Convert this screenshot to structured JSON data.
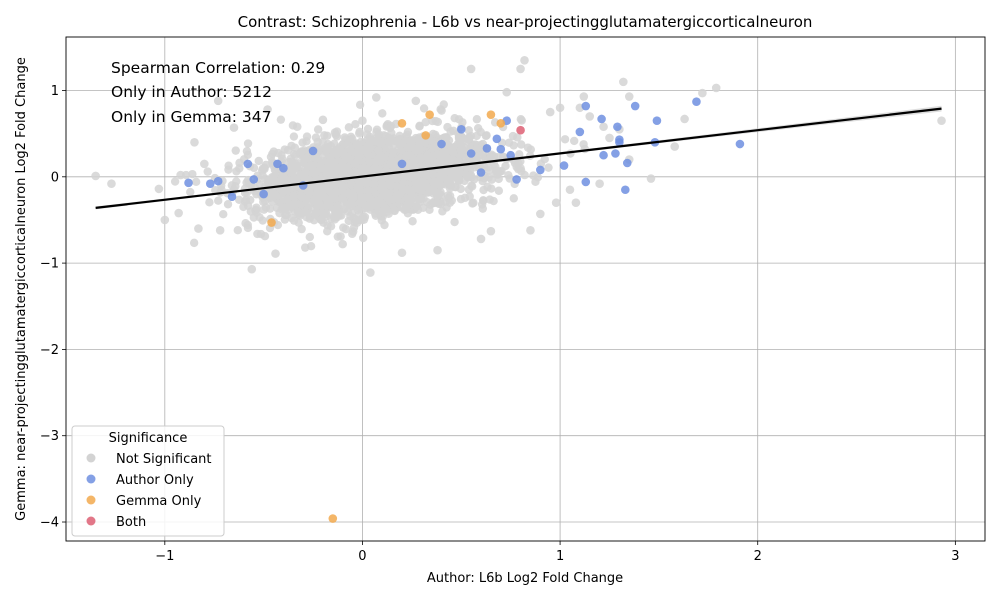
{
  "chart_data": {
    "type": "scatter",
    "title": "Contrast: Schizophrenia - L6b vs near-projectingglutamatergiccorticalneuron",
    "xlabel": "Author: L6b Log2 Fold Change",
    "ylabel": "Gemma: near-projectingglutamatergiccorticalneuron Log2 Fold Change",
    "xlim": [
      -1.5,
      3.15
    ],
    "ylim": [
      -4.22,
      1.62
    ],
    "xticks": [
      -1,
      0,
      1,
      2,
      3
    ],
    "yticks": [
      -4,
      -3,
      -2,
      -1,
      0,
      1
    ],
    "xtick_labels": [
      "−1",
      "0",
      "1",
      "2",
      "3"
    ],
    "ytick_labels": [
      "−4",
      "−3",
      "−2",
      "−1",
      "0",
      "1"
    ],
    "grid": true,
    "annotations": [
      "Spearman Correlation: 0.29",
      "Only in Author: 5212",
      "Only in Gemma: 347"
    ],
    "regression_line": {
      "x": [
        -1.35,
        2.93
      ],
      "y": [
        -0.36,
        0.79
      ]
    },
    "legend": {
      "title": "Significance",
      "placement": "lower-left",
      "entries": [
        "Not Significant",
        "Author Only",
        "Gemma Only",
        "Both"
      ]
    },
    "colors": {
      "Not Significant": "#d3d3d3",
      "Author Only": "#6f8fe0",
      "Gemma Only": "#f2a94e",
      "Both": "#dd5f73",
      "regression": "#000000",
      "ci_band": "#c8c8c8"
    },
    "cloud": {
      "series": "Not Significant",
      "count": 2600,
      "x_mean": 0.05,
      "x_sd": 0.3,
      "y_slope": 0.27,
      "y_sd": 0.22
    },
    "series": [
      {
        "name": "Not Significant",
        "points": [
          [
            -1.35,
            0.01
          ],
          [
            -1.27,
            -0.08
          ],
          [
            -1.03,
            -0.14
          ],
          [
            -1.0,
            -0.5
          ],
          [
            -0.93,
            -0.42
          ],
          [
            -0.92,
            0.02
          ],
          [
            -0.85,
            0.4
          ],
          [
            -0.83,
            -0.6
          ],
          [
            -0.8,
            0.15
          ],
          [
            -0.73,
            0.88
          ],
          [
            -0.72,
            -0.62
          ],
          [
            -0.65,
            0.57
          ],
          [
            -0.56,
            -1.07
          ],
          [
            -0.48,
            0.78
          ],
          [
            -0.44,
            -0.89
          ],
          [
            -0.33,
            0.58
          ],
          [
            -0.2,
            0.66
          ],
          [
            -0.1,
            -0.78
          ],
          [
            0.0,
            0.65
          ],
          [
            0.04,
            -1.11
          ],
          [
            0.07,
            0.92
          ],
          [
            0.2,
            -0.88
          ],
          [
            0.27,
            0.88
          ],
          [
            0.38,
            -0.85
          ],
          [
            0.55,
            1.25
          ],
          [
            0.6,
            -0.72
          ],
          [
            0.65,
            -0.63
          ],
          [
            0.73,
            0.98
          ],
          [
            0.8,
            1.25
          ],
          [
            0.82,
            1.35
          ],
          [
            0.85,
            -0.62
          ],
          [
            0.9,
            -0.43
          ],
          [
            0.95,
            0.75
          ],
          [
            0.98,
            -0.3
          ],
          [
            1.0,
            0.8
          ],
          [
            1.05,
            -0.15
          ],
          [
            1.08,
            -0.3
          ],
          [
            1.1,
            0.8
          ],
          [
            1.12,
            0.93
          ],
          [
            1.15,
            0.7
          ],
          [
            1.2,
            -0.08
          ],
          [
            1.22,
            0.58
          ],
          [
            1.25,
            0.45
          ],
          [
            1.3,
            0.55
          ],
          [
            1.32,
            1.1
          ],
          [
            1.35,
            0.93
          ],
          [
            1.35,
            0.2
          ],
          [
            1.46,
            -0.02
          ],
          [
            1.58,
            0.35
          ],
          [
            1.63,
            0.67
          ],
          [
            1.72,
            0.97
          ],
          [
            1.79,
            1.03
          ],
          [
            2.93,
            0.65
          ]
        ]
      },
      {
        "name": "Author Only",
        "points": [
          [
            -0.88,
            -0.07
          ],
          [
            -0.77,
            -0.08
          ],
          [
            -0.73,
            -0.05
          ],
          [
            -0.66,
            -0.23
          ],
          [
            -0.58,
            0.15
          ],
          [
            -0.55,
            -0.03
          ],
          [
            -0.5,
            -0.2
          ],
          [
            -0.43,
            0.15
          ],
          [
            -0.4,
            0.1
          ],
          [
            -0.3,
            -0.1
          ],
          [
            -0.25,
            0.3
          ],
          [
            0.2,
            0.15
          ],
          [
            0.4,
            0.38
          ],
          [
            0.5,
            0.55
          ],
          [
            0.55,
            0.27
          ],
          [
            0.6,
            0.05
          ],
          [
            0.63,
            0.33
          ],
          [
            0.68,
            0.44
          ],
          [
            0.7,
            0.32
          ],
          [
            0.73,
            0.65
          ],
          [
            0.75,
            0.25
          ],
          [
            0.78,
            -0.03
          ],
          [
            0.9,
            0.08
          ],
          [
            1.02,
            0.13
          ],
          [
            1.1,
            0.52
          ],
          [
            1.13,
            0.82
          ],
          [
            1.13,
            -0.06
          ],
          [
            1.21,
            0.67
          ],
          [
            1.22,
            0.25
          ],
          [
            1.28,
            0.27
          ],
          [
            1.29,
            0.58
          ],
          [
            1.3,
            0.4
          ],
          [
            1.3,
            0.43
          ],
          [
            1.33,
            -0.15
          ],
          [
            1.34,
            0.16
          ],
          [
            1.38,
            0.82
          ],
          [
            1.48,
            0.4
          ],
          [
            1.49,
            0.65
          ],
          [
            1.69,
            0.87
          ],
          [
            1.91,
            0.38
          ]
        ]
      },
      {
        "name": "Gemma Only",
        "points": [
          [
            -0.46,
            -0.53
          ],
          [
            -0.15,
            -3.96
          ],
          [
            0.2,
            0.62
          ],
          [
            0.32,
            0.48
          ],
          [
            0.34,
            0.72
          ],
          [
            0.65,
            0.72
          ],
          [
            0.7,
            0.62
          ]
        ]
      },
      {
        "name": "Both",
        "points": [
          [
            0.8,
            0.54
          ]
        ]
      }
    ]
  }
}
